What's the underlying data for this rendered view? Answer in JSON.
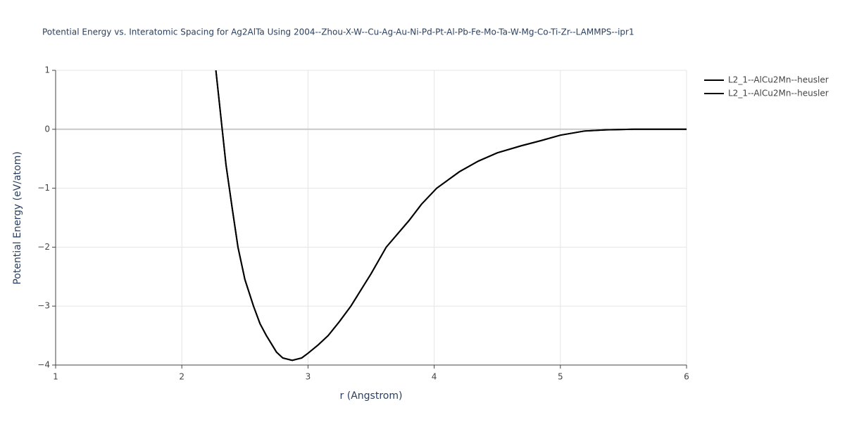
{
  "chart_data": {
    "type": "line",
    "title": "Potential Energy vs. Interatomic Spacing for Ag2AlTa Using 2004--Zhou-X-W--Cu-Ag-Au-Ni-Pd-Pt-Al-Pb-Fe-Mo-Ta-W-Mg-Co-Ti-Zr--LAMMPS--ipr1",
    "x_label": "r (Angstrom)",
    "y_label": "Potential Energy (eV/atom)",
    "x": [
      2.27,
      2.3,
      2.32,
      2.35,
      2.4,
      2.445,
      2.5,
      2.568,
      2.62,
      2.67,
      2.75,
      2.8,
      2.875,
      2.95,
      3.0,
      3.08,
      3.16,
      3.25,
      3.34,
      3.5,
      3.62,
      3.8,
      3.9,
      4.02,
      4.2,
      4.35,
      4.5,
      4.69,
      4.85,
      5.0,
      5.19,
      5.36,
      5.58,
      6.0
    ],
    "series": [
      {
        "name": "L2_1--AlCu2Mn--heusler",
        "color": "#000000",
        "values": [
          1,
          0.4,
          0,
          -0.6,
          -1.35,
          -2,
          -2.55,
          -3,
          -3.3,
          -3.5,
          -3.78,
          -3.88,
          -3.92,
          -3.88,
          -3.8,
          -3.66,
          -3.5,
          -3.26,
          -3,
          -2.45,
          -2,
          -1.55,
          -1.27,
          -1,
          -0.72,
          -0.54,
          -0.4,
          -0.28,
          -0.19,
          -0.1,
          -0.03,
          -0.01,
          0,
          0
        ]
      },
      {
        "name": "L2_1--AlCu2Mn--heusler",
        "color": "#000000",
        "values": [
          1,
          0.4,
          0,
          -0.6,
          -1.35,
          -2,
          -2.55,
          -3,
          -3.3,
          -3.5,
          -3.78,
          -3.88,
          -3.92,
          -3.88,
          -3.8,
          -3.66,
          -3.5,
          -3.26,
          -3,
          -2.45,
          -2,
          -1.55,
          -1.27,
          -1,
          -0.72,
          -0.54,
          -0.4,
          -0.28,
          -0.19,
          -0.1,
          -0.03,
          -0.01,
          0,
          0
        ]
      }
    ],
    "xlim": [
      1,
      6
    ],
    "xticks": [
      1,
      2,
      3,
      4,
      5,
      6
    ],
    "ylim": [
      -4,
      1
    ],
    "yticks": [
      {
        "value": -4,
        "label": "−4"
      },
      {
        "value": -3,
        "label": "−3"
      },
      {
        "value": -2,
        "label": "−2"
      },
      {
        "value": -1,
        "label": "−1"
      },
      0,
      1
    ],
    "grid": true,
    "legend_position": "right"
  }
}
